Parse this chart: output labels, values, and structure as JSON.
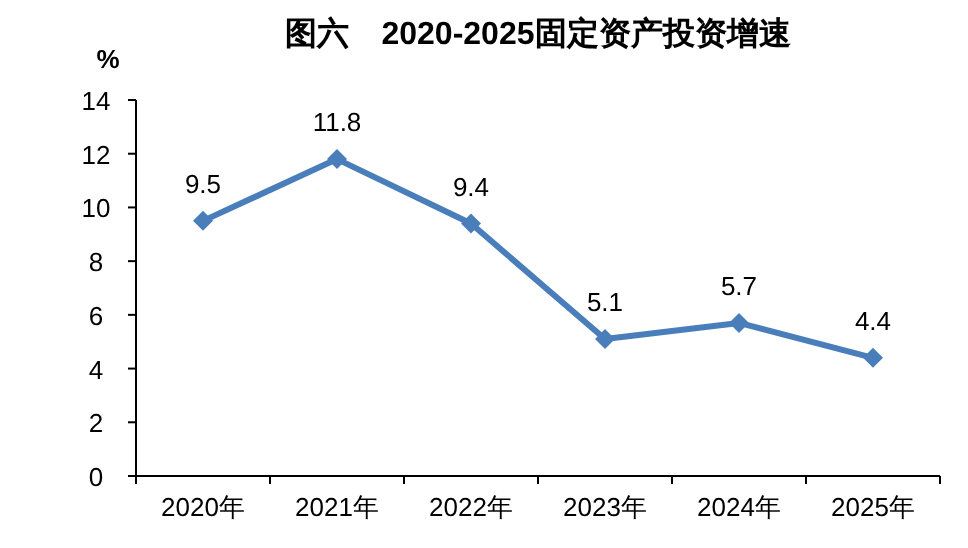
{
  "chart_data": {
    "type": "line",
    "title": "图六　2020-2025固定资产投资增速",
    "ylabel": "%",
    "categories": [
      "2020年",
      "2021年",
      "2022年",
      "2023年",
      "2024年",
      "2025年"
    ],
    "series": [
      {
        "color": "#4a7ebb",
        "values": [
          9.5,
          11.8,
          9.4,
          5.1,
          5.7,
          4.4
        ]
      }
    ],
    "ylim": [
      0,
      14
    ],
    "yticks": [
      0,
      2,
      4,
      6,
      8,
      10,
      12,
      14
    ],
    "data_labels": true,
    "marker": "diamond",
    "line_style": "solid"
  }
}
